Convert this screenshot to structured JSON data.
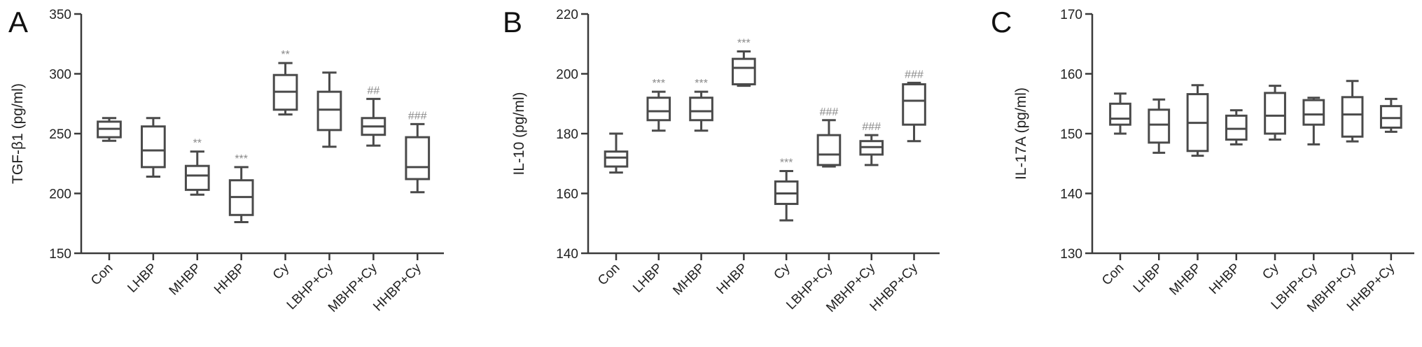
{
  "colors": {
    "axis": "#3a3a3a",
    "box": "#4a4a4a",
    "significance": "#8a8a8a",
    "background": "#ffffff"
  },
  "chart_data": [
    {
      "panel": "A",
      "type": "box",
      "title": "",
      "xlabel": "",
      "ylabel": "TGF-β1 (pg/ml)",
      "ylim": [
        150,
        350
      ],
      "yticks": [
        150,
        200,
        250,
        300,
        350
      ],
      "categories": [
        "Con",
        "LHBP",
        "MHBP",
        "HHBP",
        "Cy",
        "LBHP+Cy",
        "MBHP+Cy",
        "HHBP+Cy"
      ],
      "boxes": [
        {
          "min": 244,
          "q1": 247,
          "median": 254,
          "q3": 260,
          "max": 263,
          "sig": ""
        },
        {
          "min": 214,
          "q1": 222,
          "median": 236,
          "q3": 256,
          "max": 263,
          "sig": ""
        },
        {
          "min": 199,
          "q1": 203,
          "median": 215,
          "q3": 223,
          "max": 235,
          "sig": "**"
        },
        {
          "min": 176,
          "q1": 182,
          "median": 197,
          "q3": 211,
          "max": 222,
          "sig": "***"
        },
        {
          "min": 266,
          "q1": 270,
          "median": 285,
          "q3": 299,
          "max": 309,
          "sig": "**"
        },
        {
          "min": 239,
          "q1": 253,
          "median": 270,
          "q3": 285,
          "max": 301,
          "sig": ""
        },
        {
          "min": 240,
          "q1": 249,
          "median": 256,
          "q3": 263,
          "max": 279,
          "sig": "##"
        },
        {
          "min": 201,
          "q1": 212,
          "median": 222,
          "q3": 247,
          "max": 258,
          "sig": "###"
        }
      ]
    },
    {
      "panel": "B",
      "type": "box",
      "title": "",
      "xlabel": "",
      "ylabel": "IL-10 (pg/ml)",
      "ylim": [
        140,
        220
      ],
      "yticks": [
        140,
        160,
        180,
        200,
        220
      ],
      "categories": [
        "Con",
        "LHBP",
        "MHBP",
        "HHBP",
        "Cy",
        "LBHP+Cy",
        "MBHP+Cy",
        "HHBP+Cy"
      ],
      "boxes": [
        {
          "min": 167,
          "q1": 169,
          "median": 172,
          "q3": 174,
          "max": 180,
          "sig": ""
        },
        {
          "min": 181,
          "q1": 184.5,
          "median": 187.5,
          "q3": 192,
          "max": 194,
          "sig": "***"
        },
        {
          "min": 181,
          "q1": 184.5,
          "median": 187.5,
          "q3": 192,
          "max": 194,
          "sig": "***"
        },
        {
          "min": 196,
          "q1": 196.5,
          "median": 202,
          "q3": 205,
          "max": 207.5,
          "sig": "***"
        },
        {
          "min": 151,
          "q1": 156.5,
          "median": 160,
          "q3": 164,
          "max": 167.5,
          "sig": "***"
        },
        {
          "min": 169,
          "q1": 169.5,
          "median": 173,
          "q3": 179.5,
          "max": 184.5,
          "sig": "###"
        },
        {
          "min": 169.5,
          "q1": 173,
          "median": 175.5,
          "q3": 177.5,
          "max": 179.5,
          "sig": "###"
        },
        {
          "min": 177.5,
          "q1": 183,
          "median": 191,
          "q3": 196.5,
          "max": 197,
          "sig": "###"
        }
      ]
    },
    {
      "panel": "C",
      "type": "box",
      "title": "",
      "xlabel": "",
      "ylabel": "IL-17A (pg/ml)",
      "ylim": [
        130,
        170
      ],
      "yticks": [
        130,
        140,
        150,
        160,
        170
      ],
      "categories": [
        "Con",
        "LHBP",
        "MHBP",
        "HHBP",
        "Cy",
        "LBHP+Cy",
        "MBHP+Cy",
        "HHBP+Cy"
      ],
      "boxes": [
        {
          "min": 150,
          "q1": 151.5,
          "median": 152.5,
          "q3": 155,
          "max": 156.7,
          "sig": ""
        },
        {
          "min": 146.8,
          "q1": 148.5,
          "median": 151.5,
          "q3": 154,
          "max": 155.7,
          "sig": ""
        },
        {
          "min": 146.3,
          "q1": 147.1,
          "median": 151.8,
          "q3": 156.6,
          "max": 158.1,
          "sig": ""
        },
        {
          "min": 148.2,
          "q1": 149,
          "median": 150.8,
          "q3": 153,
          "max": 153.9,
          "sig": ""
        },
        {
          "min": 149,
          "q1": 150,
          "median": 153,
          "q3": 156.8,
          "max": 158,
          "sig": ""
        },
        {
          "min": 148.2,
          "q1": 151.5,
          "median": 153.2,
          "q3": 155.6,
          "max": 156,
          "sig": ""
        },
        {
          "min": 148.7,
          "q1": 149.5,
          "median": 153.2,
          "q3": 156.1,
          "max": 158.8,
          "sig": ""
        },
        {
          "min": 150.3,
          "q1": 151,
          "median": 152.6,
          "q3": 154.6,
          "max": 155.8,
          "sig": ""
        }
      ]
    }
  ]
}
